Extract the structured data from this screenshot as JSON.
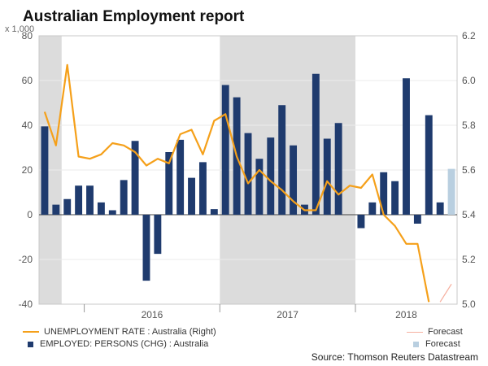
{
  "title": "Australian Employment report",
  "chart_data": {
    "type": "bar+line",
    "left_axis": {
      "unit": "x 1,000",
      "ticks": [
        "80",
        "60",
        "40",
        "20",
        "0",
        "-20",
        "-40"
      ],
      "range": [
        -40,
        80
      ]
    },
    "right_axis": {
      "ticks": [
        "6.2",
        "6.0",
        "5.8",
        "5.6",
        "5.4",
        "5.2",
        "5.0"
      ],
      "range": [
        5.0,
        6.2
      ]
    },
    "year_labels": [
      "2016",
      "2017",
      "2018"
    ],
    "shaded_ranges": [
      {
        "from": "Sep 2015",
        "to": "Oct 2015"
      },
      {
        "from": "Jan 2017",
        "to": "Dec 2017"
      }
    ],
    "months": [
      "Sep 2015",
      "Oct 2015",
      "Nov 2015",
      "Dec 2015",
      "Jan 2016",
      "Feb 2016",
      "Mar 2016",
      "Apr 2016",
      "May 2016",
      "Jun 2016",
      "Jul 2016",
      "Aug 2016",
      "Sep 2016",
      "Oct 2016",
      "Nov 2016",
      "Dec 2016",
      "Jan 2017",
      "Feb 2017",
      "Mar 2017",
      "Apr 2017",
      "May 2017",
      "Jun 2017",
      "Jul 2017",
      "Aug 2017",
      "Sep 2017",
      "Oct 2017",
      "Nov 2017",
      "Dec 2017",
      "Jan 2018",
      "Feb 2018",
      "Mar 2018",
      "Apr 2018",
      "May 2018",
      "Jun 2018",
      "Jul 2018",
      "Aug 2018",
      "Sep 2018"
    ],
    "series": [
      {
        "name": "EMPLOYED: PERSONS (CHG) : Australia",
        "axis": "left",
        "type": "bar",
        "color": "#1f3b6e",
        "values": [
          39.5,
          4.5,
          7,
          13,
          13,
          5.5,
          2,
          15.5,
          33,
          -29.5,
          -17.5,
          28,
          33.5,
          16.5,
          23.5,
          2.5,
          58,
          52.5,
          36.5,
          25,
          34.5,
          49,
          31,
          4.5,
          63,
          34,
          41,
          0,
          -6,
          5.5,
          19,
          15,
          61,
          -4,
          44.5,
          5.5,
          null
        ]
      },
      {
        "name": "UNEMPLOYMENT RATE : Australia (Right)",
        "axis": "right",
        "type": "line",
        "color": "#f5a01a",
        "values": [
          5.86,
          5.71,
          6.07,
          5.66,
          5.65,
          5.67,
          5.72,
          5.71,
          5.68,
          5.62,
          5.65,
          5.63,
          5.76,
          5.78,
          5.67,
          5.82,
          5.85,
          5.66,
          5.54,
          5.6,
          5.55,
          5.51,
          5.46,
          5.42,
          5.42,
          5.55,
          5.49,
          5.53,
          5.52,
          5.58,
          5.4,
          5.35,
          5.27,
          5.27,
          5.01,
          null,
          null
        ]
      }
    ],
    "forecast": {
      "bar": {
        "month": "Sep 2018",
        "value": 20.5,
        "color": "#b9cfe0"
      },
      "line": {
        "from_month": "Aug 2018",
        "to_month": "Sep 2018",
        "from_value": 5.01,
        "to_value": 5.09,
        "color": "#f6b0a0"
      }
    }
  },
  "legend": {
    "line_label": "UNEMPLOYMENT RATE : Australia (Right)",
    "bar_label": "EMPLOYED: PERSONS (CHG) : Australia",
    "forecast_line_label": "Forecast",
    "forecast_bar_label": "Forecast",
    "line_color": "#f5a01a",
    "bar_color": "#1f3b6e",
    "forecast_line_color": "#f6b0a0",
    "forecast_bar_color": "#b9cfe0"
  },
  "source": "Source: Thomson Reuters Datastream"
}
